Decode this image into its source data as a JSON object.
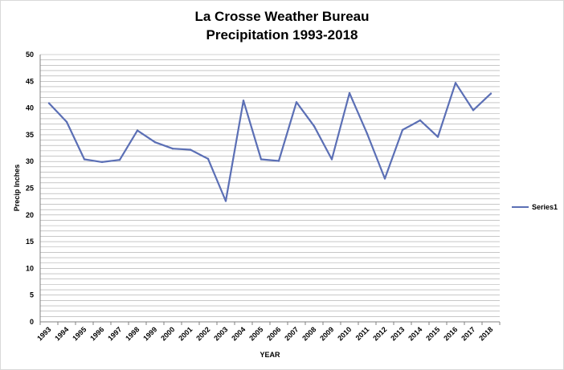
{
  "chart_data": {
    "type": "line",
    "title_line1": "La Crosse Weather Bureau",
    "title_line2": "Precipitation 1993-2018",
    "xlabel": "YEAR",
    "ylabel": "Precip Inches",
    "ylim": [
      0,
      50
    ],
    "y_major_step": 5,
    "y_minor_step": 1,
    "y_ticks": [
      "0",
      "5",
      "10",
      "15",
      "20",
      "25",
      "30",
      "35",
      "40",
      "45",
      "50"
    ],
    "grid": true,
    "legend_position": "right",
    "series_color": "#5b6fb5",
    "categories": [
      "1993",
      "1994",
      "1995",
      "1996",
      "1997",
      "1998",
      "1999",
      "2000",
      "2001",
      "2002",
      "2003",
      "2004",
      "2005",
      "2006",
      "2007",
      "2008",
      "2009",
      "2010",
      "2011",
      "2012",
      "2013",
      "2014",
      "2015",
      "2016",
      "2017",
      "2018"
    ],
    "series": [
      {
        "name": "Series1",
        "values": [
          40.9,
          37.4,
          30.4,
          29.9,
          30.3,
          35.8,
          33.6,
          32.4,
          32.2,
          30.5,
          22.6,
          41.4,
          30.4,
          30.1,
          41.1,
          36.6,
          30.4,
          42.8,
          35.2,
          26.8,
          35.9,
          37.7,
          34.6,
          44.7,
          39.6,
          42.7
        ]
      }
    ]
  }
}
